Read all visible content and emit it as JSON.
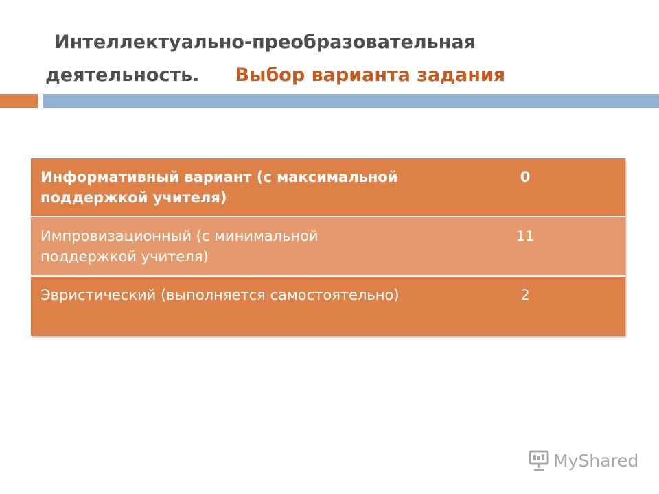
{
  "slide": {
    "title_line1": "Интеллектуально-преобразовательная",
    "title_line2": "деятельность.",
    "title_accent": "Выбор варианта задания"
  },
  "table": {
    "rows": [
      {
        "label": "Информативный вариант (с максимальной поддержкой учителя)",
        "value": "0"
      },
      {
        "label": "Импровизационный (с минимальной поддержкой учителя)",
        "value": "11"
      },
      {
        "label": "Эвристический (выполняется самостоятельно)",
        "value": "2"
      }
    ]
  },
  "watermark": {
    "text": "MyShared",
    "icon": "presentation-board-icon"
  },
  "colors": {
    "accent_orange": "#dd8149",
    "row_light": "#e49a6d",
    "bar_blue": "#93b1d4",
    "title_accent": "#c25a22",
    "title_text": "#4d4d4d"
  }
}
